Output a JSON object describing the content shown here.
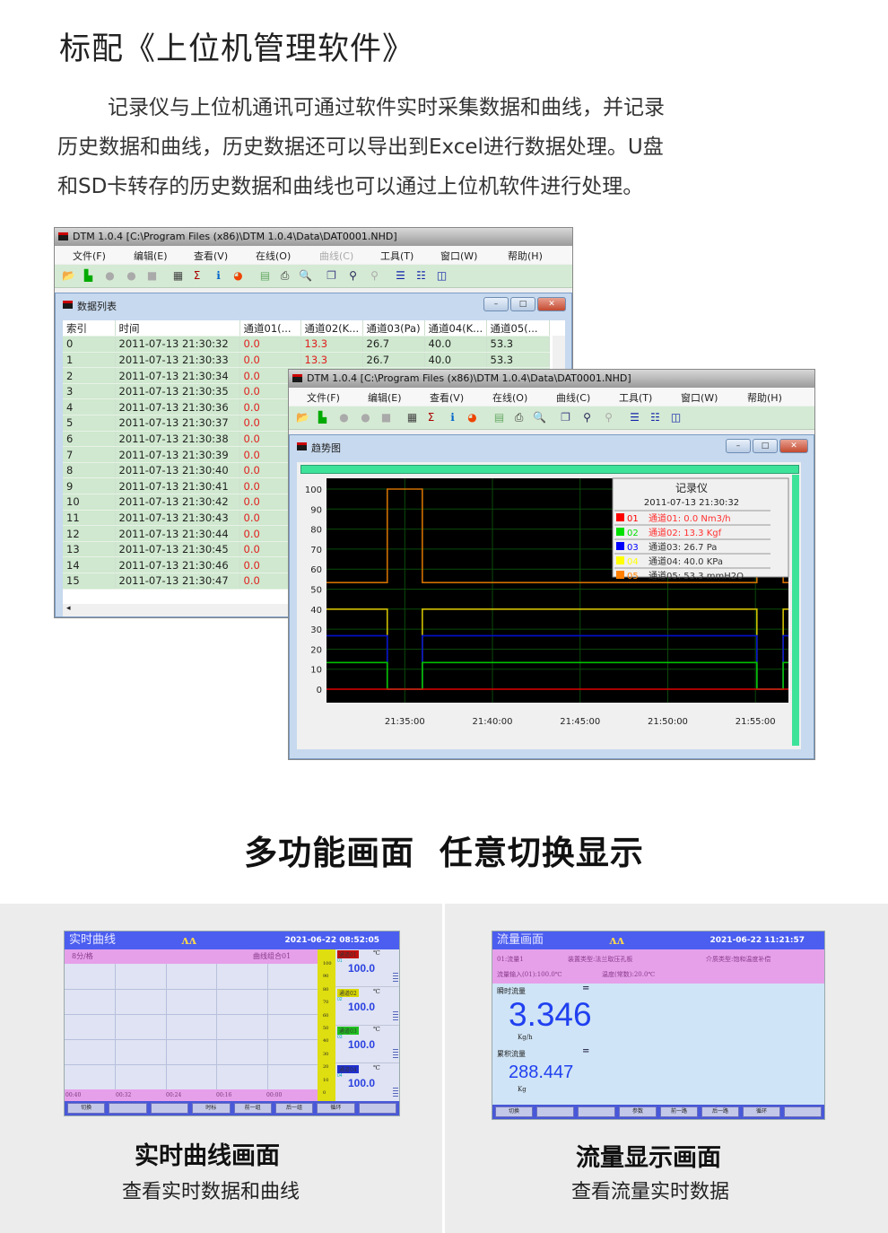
{
  "heading": "标配《上位机管理软件》",
  "paragraph_lines": [
    "记录仪与上位机通讯可通过软件实时采集数据和曲线，并记录",
    "历史数据和曲线，历史数据还可以导出到Excel进行数据处理。U盘",
    "和SD卡转存的历史数据和曲线也可以通过上位机软件进行处理。"
  ],
  "app": {
    "title": "DTM 1.0.4 [C:\\Program Files (x86)\\DTM 1.0.4\\Data\\DAT0001.NHD]",
    "menu": [
      "文件(F)",
      "编辑(E)",
      "查看(V)",
      "在线(O)",
      "曲线(C)",
      "工具(T)",
      "窗口(W)",
      "帮助(H)"
    ],
    "toolbar_icons": [
      "open-folder-icon",
      "trend-icon",
      "record-icon",
      "pause-icon",
      "stop-icon",
      "table-icon",
      "sigma-icon",
      "info-icon",
      "pie-icon",
      "export-icon",
      "print-icon",
      "print-preview-icon",
      "copy-icon",
      "zoom-in-icon",
      "zoom-out-icon",
      "cascade-icon",
      "tile-horizontal-icon",
      "tile-vertical-icon"
    ],
    "window_buttons": {
      "minimize": "–",
      "restore": "□",
      "close": "✕"
    }
  },
  "data_list": {
    "title": "数据列表",
    "columns": [
      "索引",
      "时间",
      "通道01(...",
      "通道02(K...",
      "通道03(Pa)",
      "通道04(K...",
      "通道05(..."
    ],
    "rows": [
      [
        "0",
        "2011-07-13 21:30:32",
        "0.0",
        "13.3",
        "26.7",
        "40.0",
        "53.3"
      ],
      [
        "1",
        "2011-07-13 21:30:33",
        "0.0",
        "13.3",
        "26.7",
        "40.0",
        "53.3"
      ],
      [
        "2",
        "2011-07-13 21:30:34",
        "0.0"
      ],
      [
        "3",
        "2011-07-13 21:30:35",
        "0.0"
      ],
      [
        "4",
        "2011-07-13 21:30:36",
        "0.0"
      ],
      [
        "5",
        "2011-07-13 21:30:37",
        "0.0"
      ],
      [
        "6",
        "2011-07-13 21:30:38",
        "0.0"
      ],
      [
        "7",
        "2011-07-13 21:30:39",
        "0.0"
      ],
      [
        "8",
        "2011-07-13 21:30:40",
        "0.0"
      ],
      [
        "9",
        "2011-07-13 21:30:41",
        "0.0"
      ],
      [
        "10",
        "2011-07-13 21:30:42",
        "0.0"
      ],
      [
        "11",
        "2011-07-13 21:30:43",
        "0.0"
      ],
      [
        "12",
        "2011-07-13 21:30:44",
        "0.0"
      ],
      [
        "13",
        "2011-07-13 21:30:45",
        "0.0"
      ],
      [
        "14",
        "2011-07-13 21:30:46",
        "0.0"
      ],
      [
        "15",
        "2011-07-13 21:30:47",
        "0.0"
      ]
    ]
  },
  "trend": {
    "title": "趋势图",
    "legend": {
      "title": "记录仪",
      "time": "2011-07-13 21:30:32",
      "items": [
        {
          "code": "01",
          "text": "通道01: 0.0 Nm3/h",
          "color": "#ff0000",
          "text_color": "#ff3030"
        },
        {
          "code": "02",
          "text": "通道02: 13.3 Kgf",
          "color": "#00e000",
          "text_color": "#ff3030"
        },
        {
          "code": "03",
          "text": "通道03: 26.7 Pa",
          "color": "#0000ff",
          "text_color": "#333333"
        },
        {
          "code": "04",
          "text": "通道04: 40.0 KPa",
          "color": "#ffff00",
          "text_color": "#333333"
        },
        {
          "code": "05",
          "text": "通道05: 53.3 mmH2O",
          "color": "#ff8000",
          "text_color": "#333333"
        }
      ]
    }
  },
  "chart_data": {
    "type": "line",
    "y_ticks": [
      "0",
      "10",
      "20",
      "30",
      "40",
      "50",
      "60",
      "70",
      "80",
      "90",
      "100"
    ],
    "x_ticks": [
      "21:35:00",
      "21:40:00",
      "21:45:00",
      "21:50:00",
      "21:55:00"
    ],
    "ylim": [
      0,
      100
    ],
    "xlim": [
      "21:30:32",
      "21:56:53"
    ],
    "grid": true,
    "legend_position": "top-right",
    "step_times": [
      "21:30:32",
      "21:34:00",
      "21:36:00",
      "21:55:05",
      "21:56:35",
      "21:56:53"
    ],
    "series": [
      {
        "name": "01",
        "color": "#e00000",
        "values": [
          0,
          0,
          0,
          0,
          0,
          0
        ]
      },
      {
        "name": "02",
        "color": "#00c000",
        "values": [
          13.3,
          0,
          13.3,
          0,
          13.3,
          13.3
        ]
      },
      {
        "name": "03",
        "color": "#0010d0",
        "values": [
          26.7,
          0,
          26.7,
          0,
          26.7,
          26.7
        ]
      },
      {
        "name": "04",
        "color": "#d0c000",
        "values": [
          40,
          0,
          40,
          0,
          40,
          40
        ]
      },
      {
        "name": "05",
        "color": "#d07000",
        "values": [
          53.3,
          100,
          53.3,
          100,
          53.3,
          53.3
        ]
      }
    ]
  },
  "section2_heading": "多功能画面  任意切换显示",
  "realtime_screen": {
    "title": "实时曲线",
    "datetime": "2021-06-22 08:52:05",
    "scale": "8分/格",
    "group": "曲线组合01",
    "time_labels": [
      "00:40",
      "00:32",
      "00:24",
      "00:16",
      "00:00"
    ],
    "y_labels": [
      "100",
      "90",
      "80",
      "70",
      "60",
      "50",
      "40",
      "30",
      "20",
      "10",
      "0"
    ],
    "channels": [
      {
        "name": "通道01",
        "code": "01",
        "value": "100.0",
        "unit": "℃",
        "color": "#c01010"
      },
      {
        "name": "通道02",
        "code": "02",
        "value": "100.0",
        "unit": "℃",
        "color": "#d8d800"
      },
      {
        "name": "通道03",
        "code": "03",
        "value": "100.0",
        "unit": "℃",
        "color": "#20c020"
      },
      {
        "name": "通道04",
        "code": "04",
        "value": "100.0",
        "unit": "℃",
        "color": "#2030d0"
      }
    ],
    "buttons": [
      "切换",
      "",
      "",
      "时标",
      "前一组",
      "后一组",
      "循环",
      ""
    ],
    "caption": "实时曲线画面",
    "subcaption": "查看实时数据和曲线"
  },
  "flow_screen": {
    "title": "流量画面",
    "datetime": "2021-06-22 11:21:57",
    "info_line1": [
      "01:流量1",
      "装置类型:法兰取压孔板",
      "介质类型:饱和温度补偿"
    ],
    "info_line2": [
      "流量输入(01):100.0℃",
      "温度(常数):20.0℃"
    ],
    "instant_label": "瞬时流量",
    "instant_value": "3.346",
    "instant_unit": "Kg/h",
    "total_label": "累积流量",
    "total_value": "288.447",
    "total_unit": "Kg",
    "equals": "=",
    "buttons": [
      "切换",
      "",
      "",
      "参数",
      "前一路",
      "后一路",
      "循环",
      ""
    ],
    "caption": "流量显示画面",
    "subcaption": "查看流量实时数据"
  }
}
